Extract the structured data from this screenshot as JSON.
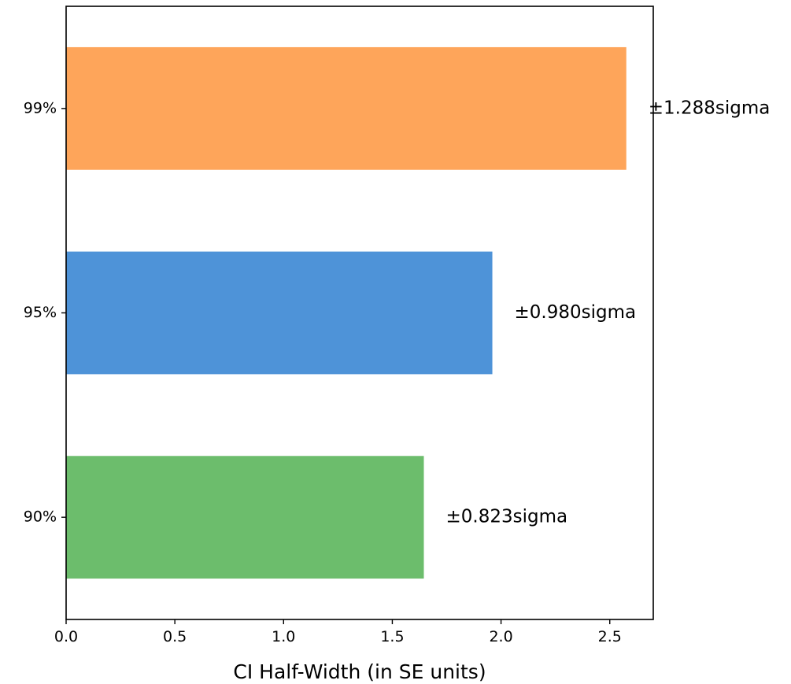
{
  "chart_data": {
    "type": "bar",
    "orientation": "horizontal",
    "categories": [
      "90%",
      "95%",
      "99%"
    ],
    "values": [
      1.645,
      1.96,
      2.576
    ],
    "bar_labels": [
      "±0.823sigma",
      "±0.980sigma",
      "±1.288sigma"
    ],
    "colors": [
      "#6cbd6c",
      "#4e93d8",
      "#fea55a"
    ],
    "xlabel": "CI Half-Width (in SE units)",
    "ylabel": "",
    "title": "",
    "xlim": [
      0,
      2.7
    ],
    "xticks": [
      0.0,
      0.5,
      1.0,
      1.5,
      2.0,
      2.5
    ],
    "xtick_labels": [
      "0.0",
      "0.5",
      "1.0",
      "1.5",
      "2.0",
      "2.5"
    ],
    "grid": false,
    "legend": "none"
  }
}
